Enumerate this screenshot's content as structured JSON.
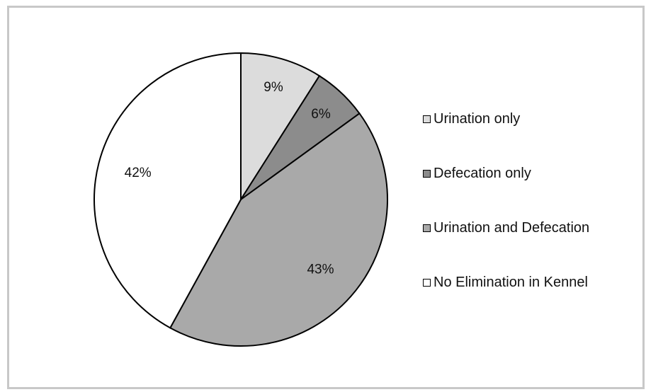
{
  "chart_data": {
    "type": "pie",
    "categories": [
      "Urination only",
      "Defecation only",
      "Urination and Defecation",
      "No Elimination in Kennel"
    ],
    "values": [
      9,
      6,
      43,
      42
    ],
    "data_labels": [
      "9%",
      "6%",
      "43%",
      "42%"
    ],
    "colors": [
      "#dcdcdc",
      "#8c8c8c",
      "#a9a9a9",
      "#ffffff"
    ],
    "legend_position": "right",
    "start_angle": "top",
    "direction": "clockwise"
  }
}
